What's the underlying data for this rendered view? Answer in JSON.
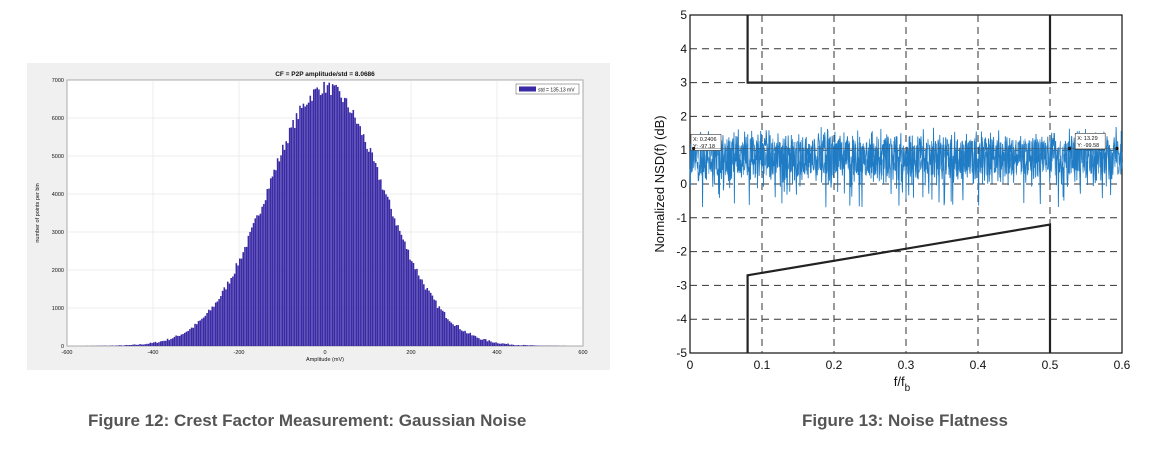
{
  "figures": [
    {
      "caption": "Figure 12: Crest Factor Measurement: Gaussian Noise",
      "chart_data": {
        "type": "bar",
        "title": "CF = P2P amplitude/std = 8.0686",
        "xlabel": "Amplitude (mV)",
        "ylabel": "number of points per bin",
        "xlim": [
          -600,
          600
        ],
        "ylim": [
          0,
          7000
        ],
        "xticks": [
          -600,
          -400,
          -200,
          0,
          200,
          400,
          600
        ],
        "yticks": [
          0,
          1000,
          2000,
          3000,
          4000,
          5000,
          6000,
          7000
        ],
        "grid": true,
        "legend": "top-right",
        "series": [
          {
            "name": "std = 135.13 mV",
            "color": "#3a2aa6",
            "mean": 0,
            "std": 135.13,
            "peak": 6800
          }
        ]
      }
    },
    {
      "caption": "Figure 13: Noise Flatness",
      "chart_data": {
        "type": "line",
        "xlabel": "f/f",
        "xlabel_sub": "b",
        "ylabel": "Normalized NSD(f) (dB)",
        "xlim": [
          0,
          0.6
        ],
        "ylim": [
          -5,
          5
        ],
        "xticks": [
          "0",
          "0.1",
          "0.2",
          "0.3",
          "0.4",
          "0.5",
          "0.6"
        ],
        "yticks": [
          "5",
          "4",
          "3",
          "2",
          "1",
          "0",
          "-1",
          "-2",
          "-3",
          "-4",
          "-5"
        ],
        "grid": true,
        "series": [
          {
            "name": "noise",
            "color": "#1f7bc4",
            "center": 0.8,
            "band": [
              -0.7,
              2.0
            ]
          },
          {
            "name": "upper-mask",
            "color": "#222222",
            "x": [
              0.08,
              0.08,
              0.5,
              0.5
            ],
            "y": [
              5,
              3,
              3,
              5
            ]
          },
          {
            "name": "lower-mask",
            "color": "#222222",
            "x": [
              0.08,
              0.08,
              0.5,
              0.5
            ],
            "y": [
              -5,
              -2.7,
              -1.2,
              -5
            ]
          }
        ],
        "datatips": [
          {
            "x_label": "X: 0.2406",
            "y_label": "Y: -97.18"
          },
          {
            "x_label": "X: 13.29",
            "y_label": "Y: -99.58"
          }
        ]
      }
    }
  ]
}
